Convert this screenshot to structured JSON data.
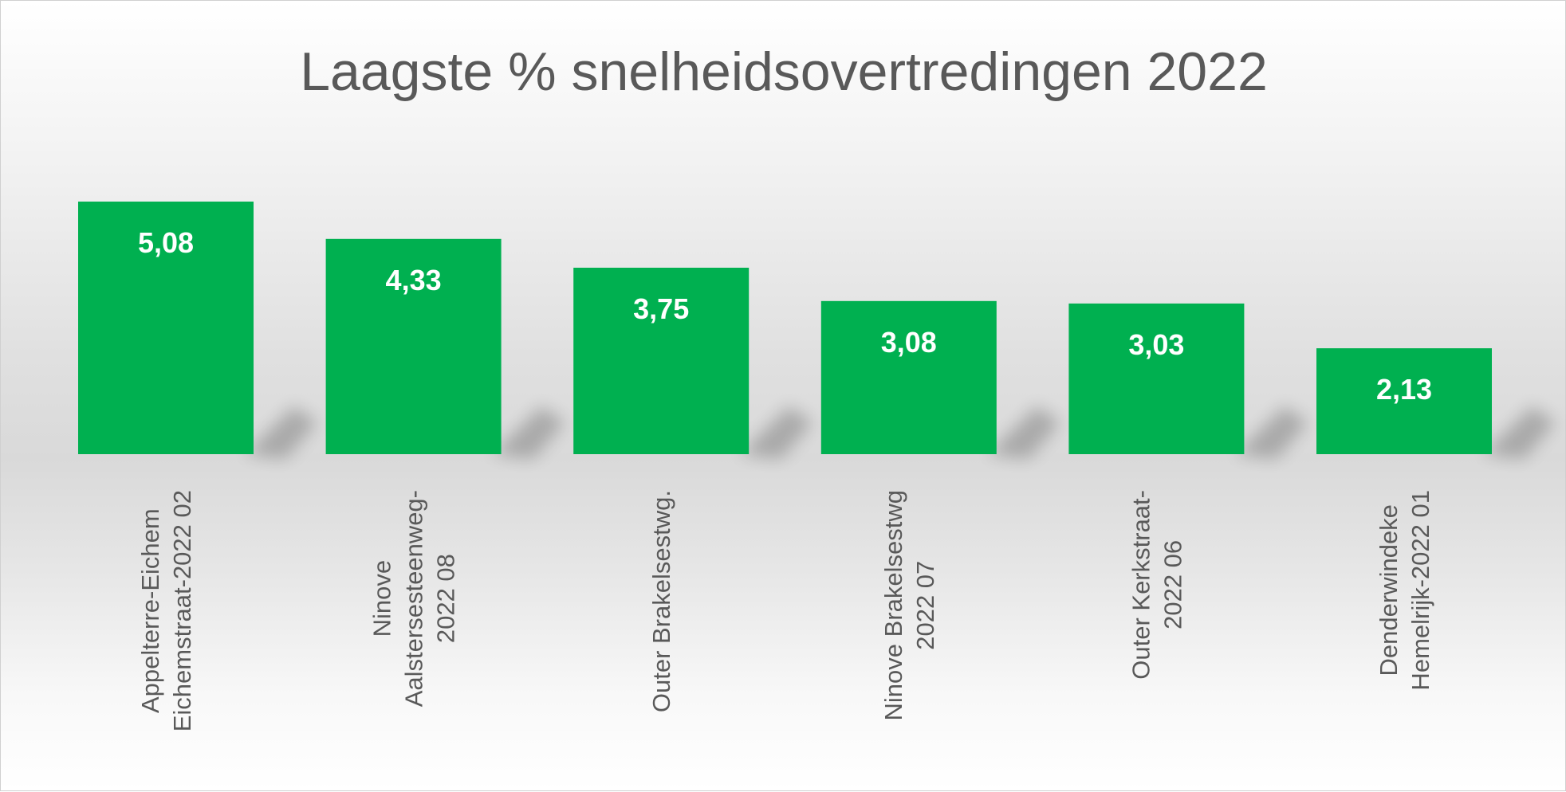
{
  "chart_data": {
    "type": "bar",
    "title": "Laagste % snelheidsovertredingen 2022",
    "categories": [
      [
        "Appelterre-Eichem",
        "Eichemstraat-2022 02"
      ],
      [
        "Ninove",
        "Aalstersesteenweg-",
        "2022 08"
      ],
      [
        "Outer Brakelsestwg."
      ],
      [
        "Ninove Brakelsestwg",
        "2022 07"
      ],
      [
        "Outer Kerkstraat-",
        "2022 06"
      ],
      [
        "Denderwindeke",
        "Hemelrijk-2022 01"
      ]
    ],
    "values": [
      5.08,
      4.33,
      3.75,
      3.08,
      3.03,
      2.13
    ],
    "value_labels": [
      "5,08",
      "4,33",
      "3,75",
      "3,08",
      "3,03",
      "2,13"
    ],
    "xlabel": "",
    "ylabel": "",
    "ylim": [
      0,
      5.08
    ],
    "grid": false,
    "legend": "none",
    "bar_color": "#00B050"
  }
}
